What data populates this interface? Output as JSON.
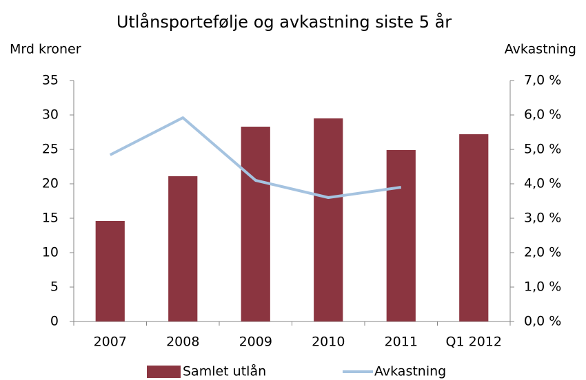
{
  "chart_data": {
    "type": "bar_line",
    "title": "Utlånsportefølje og avkastning siste 5 år",
    "y_label": "Mrd kroner",
    "y2_label": "Avkastning",
    "categories": [
      "2007",
      "2008",
      "2009",
      "2010",
      "2011",
      "Q1 2012"
    ],
    "series": [
      {
        "name": "Samlet utlån",
        "type": "bar",
        "color": "#8b3540",
        "values": [
          14.6,
          21.1,
          28.3,
          29.5,
          24.9,
          27.2
        ]
      },
      {
        "name": "Avkastning",
        "type": "line",
        "axis": "y2",
        "color": "#a5c3e0",
        "values": [
          4.84,
          5.92,
          4.1,
          3.6,
          3.9,
          null
        ]
      }
    ],
    "ylim": [
      0,
      35
    ],
    "yticks": [
      0,
      5,
      10,
      15,
      20,
      25,
      30,
      35
    ],
    "y2lim": [
      0,
      7
    ],
    "y2ticks": [
      {
        "value": 0,
        "label": "0,0 %"
      },
      {
        "value": 1,
        "label": "1,0 %"
      },
      {
        "value": 2,
        "label": "2,0 %"
      },
      {
        "value": 3,
        "label": "3,0 %"
      },
      {
        "value": 4,
        "label": "4,0 %"
      },
      {
        "value": 5,
        "label": "5,0 %"
      },
      {
        "value": 6,
        "label": "6,0 %"
      },
      {
        "value": 7,
        "label": "7,0 %"
      }
    ],
    "grid": false,
    "legend": "bottom"
  }
}
